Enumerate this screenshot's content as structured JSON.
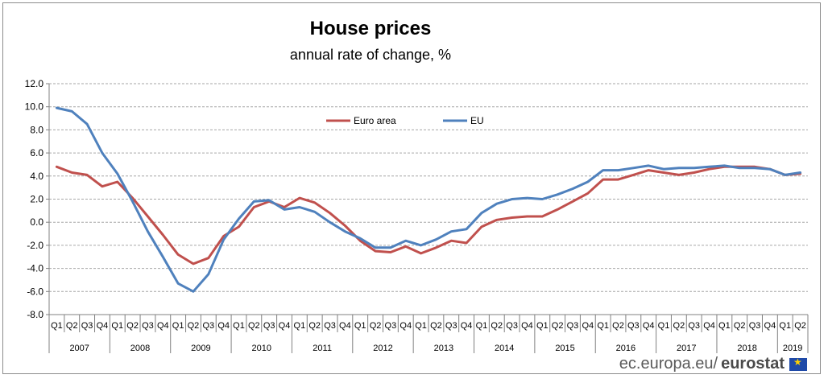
{
  "chart_data": {
    "type": "line",
    "title": "House prices",
    "subtitle": "annual rate of change,  %",
    "ylim": [
      -8,
      12
    ],
    "yticks": [
      "12.0",
      "10.0",
      "8.0",
      "6.0",
      "4.0",
      "2.0",
      "0.0",
      "-2.0",
      "-4.0",
      "-6.0",
      "-8.0"
    ],
    "quarters": [
      "Q1",
      "Q2",
      "Q3",
      "Q4"
    ],
    "years": [
      "2007",
      "2008",
      "2009",
      "2010",
      "2011",
      "2012",
      "2013",
      "2014",
      "2015",
      "2016",
      "2017",
      "2018",
      "2019"
    ],
    "years_quarters": [
      4,
      4,
      4,
      4,
      4,
      4,
      4,
      4,
      4,
      4,
      4,
      4,
      2
    ],
    "series": [
      {
        "name": "Euro area",
        "color": "#c0504d",
        "values": [
          4.8,
          4.3,
          4.1,
          3.1,
          3.5,
          2.1,
          0.5,
          -1.1,
          -2.8,
          -3.6,
          -3.1,
          -1.2,
          -0.4,
          1.3,
          1.8,
          1.3,
          2.1,
          1.7,
          0.8,
          -0.3,
          -1.6,
          -2.5,
          -2.6,
          -2.1,
          -2.7,
          -2.2,
          -1.6,
          -1.8,
          -0.4,
          0.2,
          0.4,
          0.5,
          0.5,
          1.1,
          1.8,
          2.5,
          3.7,
          3.7,
          4.1,
          4.5,
          4.3,
          4.1,
          4.3,
          4.6,
          4.8,
          4.8,
          4.8,
          4.6,
          4.1,
          4.2
        ]
      },
      {
        "name": "EU",
        "color": "#4f81bd",
        "values": [
          9.9,
          9.6,
          8.5,
          6.0,
          4.2,
          1.8,
          -0.8,
          -3.0,
          -5.3,
          -6.0,
          -4.5,
          -1.5,
          0.3,
          1.8,
          1.9,
          1.1,
          1.3,
          0.9,
          0.0,
          -0.8,
          -1.4,
          -2.2,
          -2.2,
          -1.6,
          -2.0,
          -1.5,
          -0.8,
          -0.6,
          0.8,
          1.6,
          2.0,
          2.1,
          2.0,
          2.4,
          2.9,
          3.5,
          4.5,
          4.5,
          4.7,
          4.9,
          4.6,
          4.7,
          4.7,
          4.8,
          4.9,
          4.7,
          4.7,
          4.6,
          4.1,
          4.3
        ]
      }
    ],
    "legend_position": "top-center"
  },
  "footer": {
    "site": "ec.europa.eu/",
    "brand": "eurostat"
  },
  "colors": {
    "grid": "#a6a6a6",
    "axis": "#808080"
  }
}
